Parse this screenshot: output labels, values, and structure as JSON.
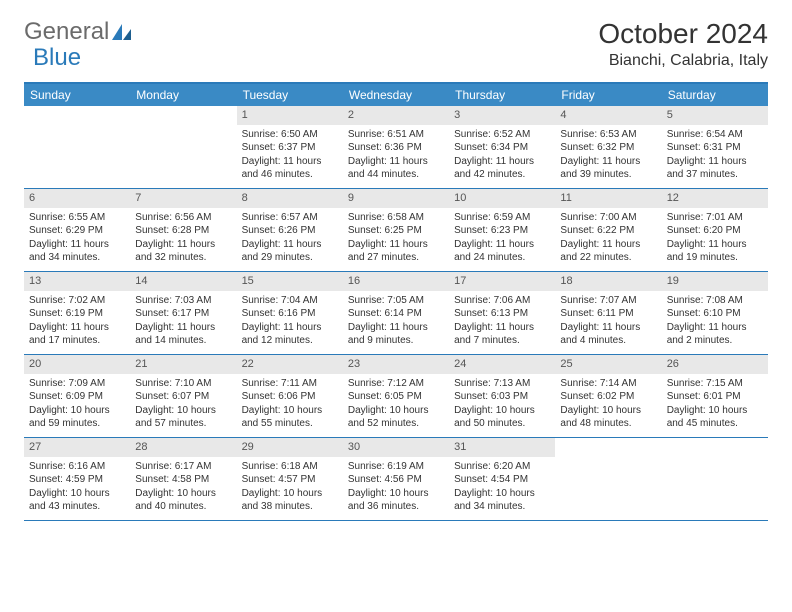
{
  "logo": {
    "text1": "General",
    "text2": "Blue"
  },
  "title": "October 2024",
  "location": "Bianchi, Calabria, Italy",
  "colors": {
    "header_bar": "#3a8ac5",
    "accent_line": "#2a7ab9",
    "daynum_bg": "#e8e8e8",
    "text": "#333333",
    "logo_gray": "#6b6b6b"
  },
  "dow": [
    "Sunday",
    "Monday",
    "Tuesday",
    "Wednesday",
    "Thursday",
    "Friday",
    "Saturday"
  ],
  "weeks": [
    [
      {
        "n": "",
        "sr": "",
        "ss": "",
        "dl": ""
      },
      {
        "n": "",
        "sr": "",
        "ss": "",
        "dl": ""
      },
      {
        "n": "1",
        "sr": "Sunrise: 6:50 AM",
        "ss": "Sunset: 6:37 PM",
        "dl": "Daylight: 11 hours and 46 minutes."
      },
      {
        "n": "2",
        "sr": "Sunrise: 6:51 AM",
        "ss": "Sunset: 6:36 PM",
        "dl": "Daylight: 11 hours and 44 minutes."
      },
      {
        "n": "3",
        "sr": "Sunrise: 6:52 AM",
        "ss": "Sunset: 6:34 PM",
        "dl": "Daylight: 11 hours and 42 minutes."
      },
      {
        "n": "4",
        "sr": "Sunrise: 6:53 AM",
        "ss": "Sunset: 6:32 PM",
        "dl": "Daylight: 11 hours and 39 minutes."
      },
      {
        "n": "5",
        "sr": "Sunrise: 6:54 AM",
        "ss": "Sunset: 6:31 PM",
        "dl": "Daylight: 11 hours and 37 minutes."
      }
    ],
    [
      {
        "n": "6",
        "sr": "Sunrise: 6:55 AM",
        "ss": "Sunset: 6:29 PM",
        "dl": "Daylight: 11 hours and 34 minutes."
      },
      {
        "n": "7",
        "sr": "Sunrise: 6:56 AM",
        "ss": "Sunset: 6:28 PM",
        "dl": "Daylight: 11 hours and 32 minutes."
      },
      {
        "n": "8",
        "sr": "Sunrise: 6:57 AM",
        "ss": "Sunset: 6:26 PM",
        "dl": "Daylight: 11 hours and 29 minutes."
      },
      {
        "n": "9",
        "sr": "Sunrise: 6:58 AM",
        "ss": "Sunset: 6:25 PM",
        "dl": "Daylight: 11 hours and 27 minutes."
      },
      {
        "n": "10",
        "sr": "Sunrise: 6:59 AM",
        "ss": "Sunset: 6:23 PM",
        "dl": "Daylight: 11 hours and 24 minutes."
      },
      {
        "n": "11",
        "sr": "Sunrise: 7:00 AM",
        "ss": "Sunset: 6:22 PM",
        "dl": "Daylight: 11 hours and 22 minutes."
      },
      {
        "n": "12",
        "sr": "Sunrise: 7:01 AM",
        "ss": "Sunset: 6:20 PM",
        "dl": "Daylight: 11 hours and 19 minutes."
      }
    ],
    [
      {
        "n": "13",
        "sr": "Sunrise: 7:02 AM",
        "ss": "Sunset: 6:19 PM",
        "dl": "Daylight: 11 hours and 17 minutes."
      },
      {
        "n": "14",
        "sr": "Sunrise: 7:03 AM",
        "ss": "Sunset: 6:17 PM",
        "dl": "Daylight: 11 hours and 14 minutes."
      },
      {
        "n": "15",
        "sr": "Sunrise: 7:04 AM",
        "ss": "Sunset: 6:16 PM",
        "dl": "Daylight: 11 hours and 12 minutes."
      },
      {
        "n": "16",
        "sr": "Sunrise: 7:05 AM",
        "ss": "Sunset: 6:14 PM",
        "dl": "Daylight: 11 hours and 9 minutes."
      },
      {
        "n": "17",
        "sr": "Sunrise: 7:06 AM",
        "ss": "Sunset: 6:13 PM",
        "dl": "Daylight: 11 hours and 7 minutes."
      },
      {
        "n": "18",
        "sr": "Sunrise: 7:07 AM",
        "ss": "Sunset: 6:11 PM",
        "dl": "Daylight: 11 hours and 4 minutes."
      },
      {
        "n": "19",
        "sr": "Sunrise: 7:08 AM",
        "ss": "Sunset: 6:10 PM",
        "dl": "Daylight: 11 hours and 2 minutes."
      }
    ],
    [
      {
        "n": "20",
        "sr": "Sunrise: 7:09 AM",
        "ss": "Sunset: 6:09 PM",
        "dl": "Daylight: 10 hours and 59 minutes."
      },
      {
        "n": "21",
        "sr": "Sunrise: 7:10 AM",
        "ss": "Sunset: 6:07 PM",
        "dl": "Daylight: 10 hours and 57 minutes."
      },
      {
        "n": "22",
        "sr": "Sunrise: 7:11 AM",
        "ss": "Sunset: 6:06 PM",
        "dl": "Daylight: 10 hours and 55 minutes."
      },
      {
        "n": "23",
        "sr": "Sunrise: 7:12 AM",
        "ss": "Sunset: 6:05 PM",
        "dl": "Daylight: 10 hours and 52 minutes."
      },
      {
        "n": "24",
        "sr": "Sunrise: 7:13 AM",
        "ss": "Sunset: 6:03 PM",
        "dl": "Daylight: 10 hours and 50 minutes."
      },
      {
        "n": "25",
        "sr": "Sunrise: 7:14 AM",
        "ss": "Sunset: 6:02 PM",
        "dl": "Daylight: 10 hours and 48 minutes."
      },
      {
        "n": "26",
        "sr": "Sunrise: 7:15 AM",
        "ss": "Sunset: 6:01 PM",
        "dl": "Daylight: 10 hours and 45 minutes."
      }
    ],
    [
      {
        "n": "27",
        "sr": "Sunrise: 6:16 AM",
        "ss": "Sunset: 4:59 PM",
        "dl": "Daylight: 10 hours and 43 minutes."
      },
      {
        "n": "28",
        "sr": "Sunrise: 6:17 AM",
        "ss": "Sunset: 4:58 PM",
        "dl": "Daylight: 10 hours and 40 minutes."
      },
      {
        "n": "29",
        "sr": "Sunrise: 6:18 AM",
        "ss": "Sunset: 4:57 PM",
        "dl": "Daylight: 10 hours and 38 minutes."
      },
      {
        "n": "30",
        "sr": "Sunrise: 6:19 AM",
        "ss": "Sunset: 4:56 PM",
        "dl": "Daylight: 10 hours and 36 minutes."
      },
      {
        "n": "31",
        "sr": "Sunrise: 6:20 AM",
        "ss": "Sunset: 4:54 PM",
        "dl": "Daylight: 10 hours and 34 minutes."
      },
      {
        "n": "",
        "sr": "",
        "ss": "",
        "dl": ""
      },
      {
        "n": "",
        "sr": "",
        "ss": "",
        "dl": ""
      }
    ]
  ]
}
